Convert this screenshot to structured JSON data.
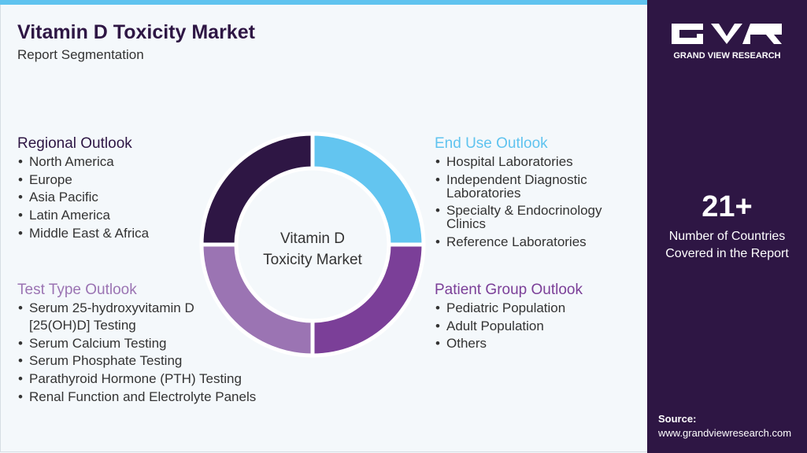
{
  "header": {
    "title": "Vitamin D Toxicity Market",
    "subtitle": "Report Segmentation"
  },
  "center_label": [
    "Vitamin D",
    "Toxicity Market"
  ],
  "sections": [
    {
      "heading": "Regional Outlook",
      "items": [
        [
          "North America"
        ],
        [
          "Europe"
        ],
        [
          "Asia Pacific"
        ],
        [
          "Latin America"
        ],
        [
          "Middle East & Africa"
        ]
      ]
    },
    {
      "heading": "Test Type Outlook",
      "items": [
        [
          "Serum 25-hydroxyvitamin D",
          "[25(OH)D] Testing"
        ],
        [
          "Serum Calcium Testing"
        ],
        [
          "Serum Phosphate Testing"
        ],
        [
          "Parathyroid Hormone (PTH) Testing"
        ],
        [
          "Renal Function and Electrolyte Panels"
        ]
      ]
    },
    {
      "heading": "End Use Outlook",
      "items": [
        [
          "Hospital Laboratories"
        ],
        [
          "Independent Diagnostic",
          "Laboratories"
        ],
        [
          "Specialty & Endocrinology",
          "Clinics"
        ],
        [
          "Reference Laboratories"
        ]
      ]
    },
    {
      "heading": "Patient Group Outlook",
      "items": [
        [
          "Pediatric Population"
        ],
        [
          "Adult Population"
        ],
        [
          "Others"
        ]
      ]
    }
  ],
  "sidebar": {
    "brand": "GRAND VIEW RESEARCH",
    "stat": "21+",
    "stat_caption": [
      "Number of Countries",
      "Covered in the Report"
    ],
    "source_label": "Source:",
    "source_url": "www.grandviewresearch.com"
  }
}
